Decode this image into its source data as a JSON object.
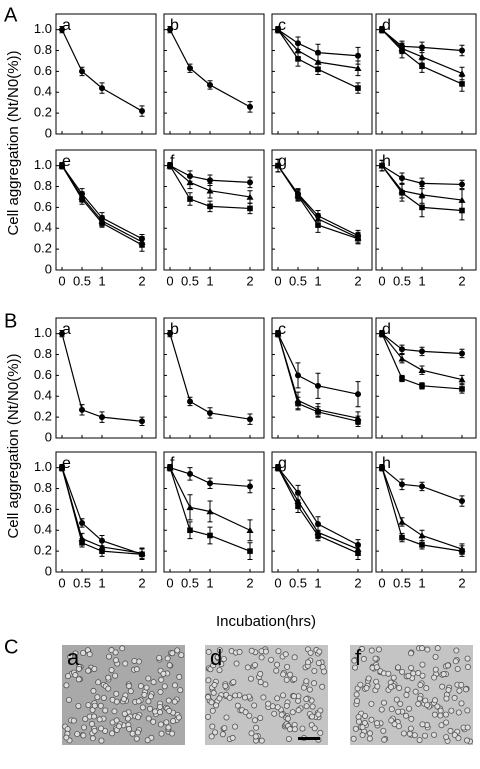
{
  "figure": {
    "section_labels": [
      "A",
      "B",
      "C"
    ],
    "y_label": "Cell aggregation (Nt/N0(%))",
    "x_label": "Incubation(hrs)",
    "images": [
      {
        "label": "a"
      },
      {
        "label": "d"
      },
      {
        "label": "f"
      }
    ]
  },
  "chart_data": [
    {
      "type": "line",
      "label": "a",
      "x": [
        0,
        0.5,
        1,
        2
      ],
      "xlim": [
        -0.15,
        2.35
      ],
      "xticks": [
        0,
        0.5,
        1,
        2
      ],
      "ylim": [
        0,
        1.15
      ],
      "yticks": [
        0,
        0.2,
        0.4,
        0.6,
        0.8,
        {
          "value": 1,
          "label": "1.0"
        }
      ],
      "series": [
        {
          "marker": "circle",
          "values": [
            1,
            0.6,
            0.44,
            0.22
          ],
          "errors": [
            0.03,
            0.04,
            0.05,
            0.05
          ]
        }
      ]
    },
    {
      "type": "line",
      "label": "b",
      "x": [
        0,
        0.5,
        1,
        2
      ],
      "xlim": [
        -0.15,
        2.35
      ],
      "xticks": [
        0,
        0.5,
        1,
        2
      ],
      "ylim": [
        0,
        1.15
      ],
      "yticks": [
        0,
        0.2,
        0.4,
        0.6,
        0.8,
        {
          "value": 1,
          "label": "1.0"
        }
      ],
      "series": [
        {
          "marker": "circle",
          "values": [
            1,
            0.63,
            0.47,
            0.26
          ],
          "errors": [
            0.03,
            0.04,
            0.04,
            0.05
          ]
        }
      ]
    },
    {
      "type": "line",
      "label": "c",
      "x": [
        0,
        0.5,
        1,
        2
      ],
      "xlim": [
        -0.15,
        2.35
      ],
      "xticks": [
        0,
        0.5,
        1,
        2
      ],
      "ylim": [
        0,
        1.15
      ],
      "yticks": [
        0,
        0.2,
        0.4,
        0.6,
        0.8,
        {
          "value": 1,
          "label": "1.0"
        }
      ],
      "series": [
        {
          "marker": "circle",
          "values": [
            1,
            0.87,
            0.78,
            0.75
          ],
          "errors": [
            0.03,
            0.06,
            0.08,
            0.08
          ]
        },
        {
          "marker": "triangle",
          "values": [
            1,
            0.8,
            0.69,
            0.63
          ],
          "errors": [
            0.03,
            0.07,
            0.07,
            0.07
          ]
        },
        {
          "marker": "square",
          "values": [
            1,
            0.72,
            0.62,
            0.44
          ],
          "errors": [
            0.03,
            0.07,
            0.05,
            0.05
          ]
        }
      ]
    },
    {
      "type": "line",
      "label": "d",
      "x": [
        0,
        0.5,
        1,
        2
      ],
      "xlim": [
        -0.15,
        2.35
      ],
      "xticks": [
        0,
        0.5,
        1,
        2
      ],
      "ylim": [
        0,
        1.15
      ],
      "yticks": [
        0,
        0.2,
        0.4,
        0.6,
        0.8,
        {
          "value": 1,
          "label": "1.0"
        }
      ],
      "series": [
        {
          "marker": "circle",
          "values": [
            1,
            0.84,
            0.83,
            0.8
          ],
          "errors": [
            0.03,
            0.05,
            0.05,
            0.05
          ]
        },
        {
          "marker": "triangle",
          "values": [
            1,
            0.82,
            0.74,
            0.58
          ],
          "errors": [
            0.03,
            0.05,
            0.06,
            0.06
          ]
        },
        {
          "marker": "square",
          "values": [
            1,
            0.8,
            0.65,
            0.48
          ],
          "errors": [
            0.03,
            0.07,
            0.06,
            0.07
          ]
        }
      ]
    },
    {
      "type": "line",
      "label": "e",
      "x": [
        0,
        0.5,
        1,
        2
      ],
      "xlim": [
        -0.15,
        2.35
      ],
      "xticks": [
        0,
        0.5,
        1,
        2
      ],
      "ylim": [
        0,
        1.15
      ],
      "yticks": [
        0,
        0.2,
        0.4,
        0.6,
        0.8,
        {
          "value": 1,
          "label": "1.0"
        }
      ],
      "series": [
        {
          "marker": "circle",
          "values": [
            1,
            0.73,
            0.5,
            0.3
          ],
          "errors": [
            0.03,
            0.05,
            0.05,
            0.04
          ]
        },
        {
          "marker": "triangle",
          "values": [
            1,
            0.7,
            0.47,
            0.27
          ],
          "errors": [
            0.03,
            0.05,
            0.05,
            0.05
          ]
        },
        {
          "marker": "square",
          "values": [
            1,
            0.68,
            0.45,
            0.24
          ],
          "errors": [
            0.03,
            0.05,
            0.04,
            0.06
          ]
        }
      ]
    },
    {
      "type": "line",
      "label": "f",
      "x": [
        0,
        0.5,
        1,
        2
      ],
      "xlim": [
        -0.15,
        2.35
      ],
      "xticks": [
        0,
        0.5,
        1,
        2
      ],
      "ylim": [
        0,
        1.15
      ],
      "yticks": [
        0,
        0.2,
        0.4,
        0.6,
        0.8,
        {
          "value": 1,
          "label": "1.0"
        }
      ],
      "series": [
        {
          "marker": "circle",
          "values": [
            1,
            0.9,
            0.86,
            0.84
          ],
          "errors": [
            0.03,
            0.05,
            0.05,
            0.05
          ]
        },
        {
          "marker": "triangle",
          "values": [
            1,
            0.84,
            0.76,
            0.7
          ],
          "errors": [
            0.03,
            0.06,
            0.07,
            0.06
          ]
        },
        {
          "marker": "square",
          "values": [
            1,
            0.68,
            0.61,
            0.59
          ],
          "errors": [
            0.03,
            0.06,
            0.05,
            0.05
          ]
        }
      ]
    },
    {
      "type": "line",
      "label": "g",
      "x": [
        0,
        0.5,
        1,
        2
      ],
      "xlim": [
        -0.15,
        2.35
      ],
      "xticks": [
        0,
        0.5,
        1,
        2
      ],
      "ylim": [
        0,
        1.15
      ],
      "yticks": [
        0,
        0.2,
        0.4,
        0.6,
        0.8,
        {
          "value": 1,
          "label": "1.0"
        }
      ],
      "series": [
        {
          "marker": "circle",
          "values": [
            1,
            0.73,
            0.52,
            0.33
          ],
          "errors": [
            0.06,
            0.05,
            0.05,
            0.05
          ]
        },
        {
          "marker": "triangle",
          "values": [
            1,
            0.72,
            0.49,
            0.31
          ],
          "errors": [
            0.06,
            0.05,
            0.05,
            0.05
          ]
        },
        {
          "marker": "square",
          "values": [
            1,
            0.71,
            0.43,
            0.3
          ],
          "errors": [
            0.06,
            0.05,
            0.07,
            0.05
          ]
        }
      ]
    },
    {
      "type": "line",
      "label": "h",
      "x": [
        0,
        0.5,
        1,
        2
      ],
      "xlim": [
        -0.15,
        2.35
      ],
      "xticks": [
        0,
        0.5,
        1,
        2
      ],
      "ylim": [
        0,
        1.15
      ],
      "yticks": [
        0,
        0.2,
        0.4,
        0.6,
        0.8,
        {
          "value": 1,
          "label": "1.0"
        }
      ],
      "series": [
        {
          "marker": "circle",
          "values": [
            1,
            0.88,
            0.83,
            0.82
          ],
          "errors": [
            0.05,
            0.05,
            0.05,
            0.04
          ]
        },
        {
          "marker": "triangle",
          "values": [
            1,
            0.76,
            0.72,
            0.67
          ],
          "errors": [
            0.05,
            0.07,
            0.08,
            0.1
          ]
        },
        {
          "marker": "square",
          "values": [
            1,
            0.74,
            0.6,
            0.57
          ],
          "errors": [
            0.05,
            0.08,
            0.09,
            0.09
          ]
        }
      ]
    },
    {
      "type": "line",
      "label": "a",
      "x": [
        0,
        0.5,
        1,
        2
      ],
      "xlim": [
        -0.15,
        2.35
      ],
      "xticks": [
        0,
        0.5,
        1,
        2
      ],
      "ylim": [
        0,
        1.15
      ],
      "yticks": [
        0,
        0.2,
        0.4,
        0.6,
        0.8,
        {
          "value": 1,
          "label": "1.0"
        }
      ],
      "series": [
        {
          "marker": "circle",
          "values": [
            1,
            0.27,
            0.2,
            0.16
          ],
          "errors": [
            0.03,
            0.05,
            0.05,
            0.04
          ]
        }
      ]
    },
    {
      "type": "line",
      "label": "b",
      "x": [
        0,
        0.5,
        1,
        2
      ],
      "xlim": [
        -0.15,
        2.35
      ],
      "xticks": [
        0,
        0.5,
        1,
        2
      ],
      "ylim": [
        0,
        1.15
      ],
      "yticks": [
        0,
        0.2,
        0.4,
        0.6,
        0.8,
        {
          "value": 1,
          "label": "1.0"
        }
      ],
      "series": [
        {
          "marker": "circle",
          "values": [
            1,
            0.35,
            0.24,
            0.18
          ],
          "errors": [
            0.03,
            0.04,
            0.05,
            0.05
          ]
        }
      ]
    },
    {
      "type": "line",
      "label": "c",
      "x": [
        0,
        0.5,
        1,
        2
      ],
      "xlim": [
        -0.15,
        2.35
      ],
      "xticks": [
        0,
        0.5,
        1,
        2
      ],
      "ylim": [
        0,
        1.15
      ],
      "yticks": [
        0,
        0.2,
        0.4,
        0.6,
        0.8,
        {
          "value": 1,
          "label": "1.0"
        }
      ],
      "series": [
        {
          "marker": "circle",
          "values": [
            1,
            0.6,
            0.5,
            0.42
          ],
          "errors": [
            0.03,
            0.12,
            0.12,
            0.12
          ]
        },
        {
          "marker": "triangle",
          "values": [
            1,
            0.36,
            0.27,
            0.19
          ],
          "errors": [
            0.03,
            0.08,
            0.06,
            0.06
          ]
        },
        {
          "marker": "square",
          "values": [
            1,
            0.33,
            0.25,
            0.16
          ],
          "errors": [
            0.03,
            0.06,
            0.05,
            0.05
          ]
        }
      ]
    },
    {
      "type": "line",
      "label": "d",
      "x": [
        0,
        0.5,
        1,
        2
      ],
      "xlim": [
        -0.15,
        2.35
      ],
      "xticks": [
        0,
        0.5,
        1,
        2
      ],
      "ylim": [
        0,
        1.15
      ],
      "yticks": [
        0,
        0.2,
        0.4,
        0.6,
        0.8,
        {
          "value": 1,
          "label": "1.0"
        }
      ],
      "series": [
        {
          "marker": "circle",
          "values": [
            1,
            0.85,
            0.83,
            0.81
          ],
          "errors": [
            0.03,
            0.04,
            0.04,
            0.04
          ]
        },
        {
          "marker": "triangle",
          "values": [
            1,
            0.76,
            0.65,
            0.56
          ],
          "errors": [
            0.03,
            0.04,
            0.04,
            0.04
          ]
        },
        {
          "marker": "square",
          "values": [
            1,
            0.57,
            0.5,
            0.47
          ],
          "errors": [
            0.03,
            0.03,
            0.03,
            0.04
          ]
        }
      ]
    },
    {
      "type": "line",
      "label": "e",
      "x": [
        0,
        0.5,
        1,
        2
      ],
      "xlim": [
        -0.15,
        2.35
      ],
      "xticks": [
        0,
        0.5,
        1,
        2
      ],
      "ylim": [
        0,
        1.15
      ],
      "yticks": [
        0,
        0.2,
        0.4,
        0.6,
        0.8,
        {
          "value": 1,
          "label": "1.0"
        }
      ],
      "series": [
        {
          "marker": "circle",
          "values": [
            1,
            0.47,
            0.3,
            0.17
          ],
          "errors": [
            0.03,
            0.04,
            0.05,
            0.05
          ]
        },
        {
          "marker": "triangle",
          "values": [
            1,
            0.32,
            0.24,
            0.18
          ],
          "errors": [
            0.03,
            0.05,
            0.05,
            0.05
          ]
        },
        {
          "marker": "square",
          "values": [
            1,
            0.28,
            0.2,
            0.17
          ],
          "errors": [
            0.03,
            0.04,
            0.05,
            0.05
          ]
        }
      ]
    },
    {
      "type": "line",
      "label": "f",
      "x": [
        0,
        0.5,
        1,
        2
      ],
      "xlim": [
        -0.15,
        2.35
      ],
      "xticks": [
        0,
        0.5,
        1,
        2
      ],
      "ylim": [
        0,
        1.15
      ],
      "yticks": [
        0,
        0.2,
        0.4,
        0.6,
        0.8,
        {
          "value": 1,
          "label": "1.0"
        }
      ],
      "series": [
        {
          "marker": "circle",
          "values": [
            1,
            0.94,
            0.85,
            0.82
          ],
          "errors": [
            0.03,
            0.06,
            0.05,
            0.06
          ]
        },
        {
          "marker": "triangle",
          "values": [
            1,
            0.62,
            0.58,
            0.4
          ],
          "errors": [
            0.03,
            0.12,
            0.1,
            0.1
          ]
        },
        {
          "marker": "square",
          "values": [
            1,
            0.4,
            0.35,
            0.2
          ],
          "errors": [
            0.03,
            0.08,
            0.08,
            0.08
          ]
        }
      ]
    },
    {
      "type": "line",
      "label": "g",
      "x": [
        0,
        0.5,
        1,
        2
      ],
      "xlim": [
        -0.15,
        2.35
      ],
      "xticks": [
        0,
        0.5,
        1,
        2
      ],
      "ylim": [
        0,
        1.15
      ],
      "yticks": [
        0,
        0.2,
        0.4,
        0.6,
        0.8,
        {
          "value": 1,
          "label": "1.0"
        }
      ],
      "series": [
        {
          "marker": "circle",
          "values": [
            1,
            0.76,
            0.46,
            0.26
          ],
          "errors": [
            0.03,
            0.07,
            0.07,
            0.05
          ]
        },
        {
          "marker": "triangle",
          "values": [
            1,
            0.68,
            0.38,
            0.22
          ],
          "errors": [
            0.03,
            0.06,
            0.06,
            0.05
          ]
        },
        {
          "marker": "square",
          "values": [
            1,
            0.63,
            0.35,
            0.18
          ],
          "errors": [
            0.03,
            0.06,
            0.05,
            0.06
          ]
        }
      ]
    },
    {
      "type": "line",
      "label": "h",
      "x": [
        0,
        0.5,
        1,
        2
      ],
      "xlim": [
        -0.15,
        2.35
      ],
      "xticks": [
        0,
        0.5,
        1,
        2
      ],
      "ylim": [
        0,
        1.15
      ],
      "yticks": [
        0,
        0.2,
        0.4,
        0.6,
        0.8,
        {
          "value": 1,
          "label": "1.0"
        }
      ],
      "series": [
        {
          "marker": "circle",
          "values": [
            1,
            0.84,
            0.82,
            0.68
          ],
          "errors": [
            0.03,
            0.05,
            0.04,
            0.05
          ]
        },
        {
          "marker": "triangle",
          "values": [
            1,
            0.48,
            0.35,
            0.22
          ],
          "errors": [
            0.03,
            0.04,
            0.05,
            0.05
          ]
        },
        {
          "marker": "square",
          "values": [
            1,
            0.33,
            0.26,
            0.2
          ],
          "errors": [
            0.03,
            0.04,
            0.04,
            0.05
          ]
        }
      ]
    }
  ]
}
